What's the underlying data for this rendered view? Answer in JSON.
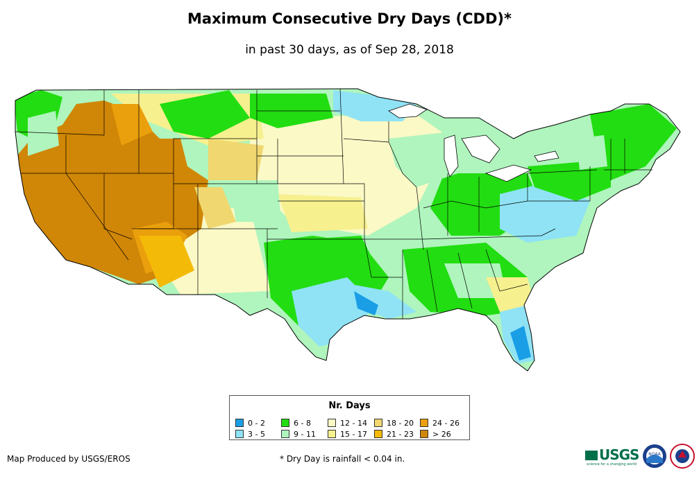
{
  "title": "Maximum Consecutive Dry Days (CDD)*",
  "subtitle": "in past 30 days, as of Sep 28, 2018",
  "legend": {
    "title": "Nr. Days",
    "items": [
      {
        "label": "0 - 2",
        "color": "#1a9ee6"
      },
      {
        "label": "3 - 5",
        "color": "#8fe3f5"
      },
      {
        "label": "6 - 8",
        "color": "#22dd11"
      },
      {
        "label": "9 - 11",
        "color": "#aff5bd"
      },
      {
        "label": "12 - 14",
        "color": "#fbf9c6"
      },
      {
        "label": "15 - 17",
        "color": "#f7f08f"
      },
      {
        "label": "18 - 20",
        "color": "#f0d770"
      },
      {
        "label": "21 - 23",
        "color": "#f4ba08"
      },
      {
        "label": "24 - 26",
        "color": "#ea9f0c"
      },
      {
        "label": "> 26",
        "color": "#d08606"
      }
    ]
  },
  "footer": {
    "credit": "Map Produced by USGS/EROS",
    "note": "* Dry Day is rainfall < 0.04 in."
  },
  "logos": {
    "usgs": "USGS",
    "usgs_tagline": "science for a changing world",
    "noaa": "NOAA"
  }
}
